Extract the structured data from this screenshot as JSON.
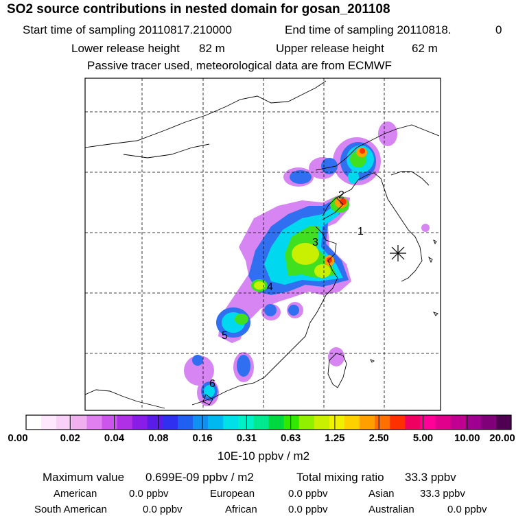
{
  "header": {
    "title": "SO2 source contributions in nested domain for gosan_201108",
    "start_label": "Start time of sampling 20110817.210000",
    "end_label": "End time of sampling 20110818.",
    "end_hour": "0",
    "lower_label": "Lower release height",
    "lower_value": "82 m",
    "upper_label": "Upper release height",
    "upper_value": "62 m",
    "note": "Passive tracer used, meteorological data are from ECMWF"
  },
  "map": {
    "receptor_icon": "asterisk-receptor-icon",
    "source_labels": [
      {
        "id": "source-1",
        "text": "1"
      },
      {
        "id": "source-2",
        "text": "2"
      },
      {
        "id": "source-3",
        "text": "3"
      },
      {
        "id": "source-4",
        "text": "4"
      },
      {
        "id": "source-5",
        "text": "5"
      },
      {
        "id": "source-6",
        "text": "6"
      }
    ]
  },
  "colorbar": {
    "colors": [
      "#ffffff",
      "#fde8fd",
      "#f8d0f8",
      "#f0b0f0",
      "#e080f0",
      "#cc55ee",
      "#b030e8",
      "#8a1ce8",
      "#5a1ce8",
      "#3030f0",
      "#2060f0",
      "#1090f0",
      "#00b8f0",
      "#00e0e8",
      "#00f0c8",
      "#00e890",
      "#00d840",
      "#30e800",
      "#90f000",
      "#c8f000",
      "#f0f000",
      "#ffd000",
      "#ffa000",
      "#ff7000",
      "#ff3000",
      "#f00060",
      "#ff0099",
      "#e0008c",
      "#c00090",
      "#a00090",
      "#80007a",
      "#500050"
    ],
    "ticks": [
      "0.00",
      "0.02",
      "0.04",
      "0.08",
      "0.16",
      "0.31",
      "0.63",
      "1.25",
      "2.50",
      "5.00",
      "10.00",
      "20.00"
    ],
    "unit": "10E-10 ppbv / m2"
  },
  "stats": {
    "max_label": "Maximum value",
    "max_value": "0.699E-09 ppbv / m2",
    "total_label": "Total mixing ratio",
    "total_value": "33.3 ppbv",
    "regions": [
      {
        "name": "American",
        "value": "0.0 ppbv"
      },
      {
        "name": "European",
        "value": "0.0 ppbv"
      },
      {
        "name": "Asian",
        "value": "33.3 ppbv"
      },
      {
        "name": "South American",
        "value": "0.0 ppbv"
      },
      {
        "name": "African",
        "value": "0.0 ppbv"
      },
      {
        "name": "Australian",
        "value": "0.0 ppbv"
      }
    ]
  }
}
